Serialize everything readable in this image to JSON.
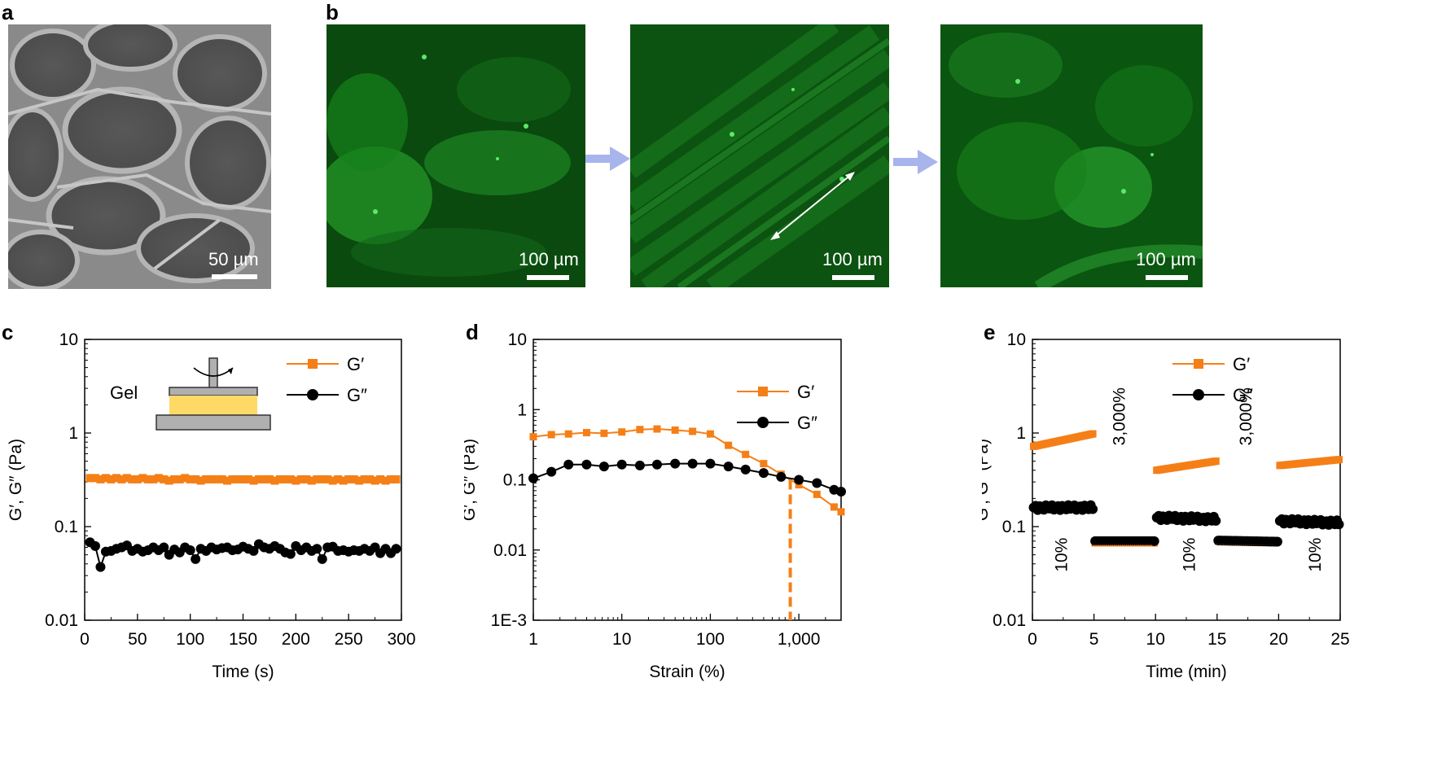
{
  "panels": {
    "a": {
      "letter": "a",
      "scale_label": "50 µm"
    },
    "b": {
      "letter": "b",
      "images": [
        {
          "scale_label": "100 µm"
        },
        {
          "scale_label": "100 µm"
        },
        {
          "scale_label": "100 µm"
        }
      ]
    },
    "c": {
      "letter": "c",
      "inset_label": "Gel"
    },
    "d": {
      "letter": "d"
    },
    "e": {
      "letter": "e"
    }
  },
  "colors": {
    "g_prime": "#f57f17",
    "g_double": "#000000",
    "arrow": "#a8b4ec",
    "gel": "#ffd966"
  },
  "chart_data": [
    {
      "id": "c",
      "type": "line",
      "xlabel": "Time (s)",
      "ylabel": "G′, G″ (Pa)",
      "xscale": "linear",
      "xlim": [
        0,
        300
      ],
      "xticks": [
        0,
        50,
        100,
        150,
        200,
        250,
        300
      ],
      "xticklabels": [
        "0",
        "50",
        "100",
        "150",
        "200",
        "250",
        "300"
      ],
      "yscale": "log",
      "ylim": [
        0.01,
        10
      ],
      "yticks": [
        0.01,
        0.1,
        1,
        10
      ],
      "yticklabels": [
        "0.01",
        "0.1",
        "1",
        "10"
      ],
      "legend": [
        "G′",
        "G″"
      ],
      "legend_position": "top-right",
      "series": [
        {
          "name": "G′",
          "marker": "square",
          "x": [
            5,
            10,
            15,
            20,
            25,
            30,
            35,
            40,
            45,
            50,
            55,
            60,
            65,
            70,
            75,
            80,
            85,
            90,
            95,
            100,
            105,
            110,
            115,
            120,
            125,
            130,
            135,
            140,
            145,
            150,
            155,
            160,
            165,
            170,
            175,
            180,
            185,
            190,
            195,
            200,
            205,
            210,
            215,
            220,
            225,
            230,
            235,
            240,
            245,
            250,
            255,
            260,
            265,
            270,
            275,
            280,
            285,
            290,
            295
          ],
          "y": [
            0.33,
            0.33,
            0.32,
            0.33,
            0.32,
            0.33,
            0.32,
            0.33,
            0.32,
            0.32,
            0.33,
            0.32,
            0.32,
            0.33,
            0.32,
            0.31,
            0.32,
            0.32,
            0.33,
            0.32,
            0.32,
            0.31,
            0.32,
            0.32,
            0.32,
            0.32,
            0.31,
            0.32,
            0.32,
            0.32,
            0.32,
            0.31,
            0.32,
            0.32,
            0.32,
            0.31,
            0.32,
            0.32,
            0.32,
            0.31,
            0.32,
            0.32,
            0.31,
            0.32,
            0.32,
            0.32,
            0.31,
            0.32,
            0.31,
            0.32,
            0.32,
            0.31,
            0.32,
            0.32,
            0.31,
            0.32,
            0.31,
            0.32,
            0.32
          ]
        },
        {
          "name": "G″",
          "marker": "circle",
          "x": [
            5,
            10,
            15,
            20,
            25,
            30,
            35,
            40,
            45,
            50,
            55,
            60,
            65,
            70,
            75,
            80,
            85,
            90,
            95,
            100,
            105,
            110,
            115,
            120,
            125,
            130,
            135,
            140,
            145,
            150,
            155,
            160,
            165,
            170,
            175,
            180,
            185,
            190,
            195,
            200,
            205,
            210,
            215,
            220,
            225,
            230,
            235,
            240,
            245,
            250,
            255,
            260,
            265,
            270,
            275,
            280,
            285,
            290,
            295
          ],
          "y": [
            0.068,
            0.062,
            0.037,
            0.054,
            0.055,
            0.058,
            0.06,
            0.063,
            0.055,
            0.058,
            0.054,
            0.056,
            0.06,
            0.056,
            0.06,
            0.05,
            0.057,
            0.053,
            0.06,
            0.056,
            0.045,
            0.058,
            0.055,
            0.06,
            0.057,
            0.059,
            0.06,
            0.056,
            0.057,
            0.061,
            0.058,
            0.055,
            0.065,
            0.06,
            0.058,
            0.062,
            0.058,
            0.053,
            0.051,
            0.062,
            0.056,
            0.06,
            0.055,
            0.058,
            0.045,
            0.06,
            0.061,
            0.055,
            0.056,
            0.054,
            0.056,
            0.055,
            0.058,
            0.055,
            0.06,
            0.052,
            0.058,
            0.052,
            0.058
          ]
        }
      ]
    },
    {
      "id": "d",
      "type": "line",
      "xlabel": "Strain (%)",
      "ylabel": "G′, G″ (Pa)",
      "xscale": "log",
      "xlim": [
        1,
        3000
      ],
      "xticks": [
        1,
        10,
        100,
        1000
      ],
      "xticklabels": [
        "1",
        "10",
        "100",
        "1,000"
      ],
      "yscale": "log",
      "ylim": [
        0.001,
        10
      ],
      "yticks": [
        0.001,
        0.01,
        0.1,
        1,
        10
      ],
      "yticklabels": [
        "1E-3",
        "0.01",
        "0.1",
        "1",
        "10"
      ],
      "legend": [
        "G′",
        "G″"
      ],
      "legend_position": "top-right",
      "crossover_strain": 800,
      "series": [
        {
          "name": "G′",
          "marker": "square",
          "x": [
            1,
            1.6,
            2.5,
            4,
            6.3,
            10,
            16,
            25,
            40,
            63,
            100,
            160,
            250,
            400,
            630,
            1000,
            1600,
            2500,
            3000
          ],
          "y": [
            0.41,
            0.44,
            0.45,
            0.47,
            0.46,
            0.48,
            0.52,
            0.53,
            0.51,
            0.49,
            0.45,
            0.31,
            0.23,
            0.17,
            0.12,
            0.085,
            0.062,
            0.041,
            0.035
          ]
        },
        {
          "name": "G″",
          "marker": "circle",
          "x": [
            1,
            1.6,
            2.5,
            4,
            6.3,
            10,
            16,
            25,
            40,
            63,
            100,
            160,
            250,
            400,
            630,
            1000,
            1600,
            2500,
            3000
          ],
          "y": [
            0.105,
            0.13,
            0.165,
            0.165,
            0.155,
            0.165,
            0.16,
            0.165,
            0.17,
            0.17,
            0.17,
            0.155,
            0.14,
            0.125,
            0.11,
            0.1,
            0.09,
            0.072,
            0.068
          ]
        }
      ]
    },
    {
      "id": "e",
      "type": "scatter",
      "xlabel": "Time (min)",
      "ylabel": "G′, G″ (Pa)",
      "xscale": "linear",
      "xlim": [
        0,
        25
      ],
      "xticks": [
        0,
        5,
        10,
        15,
        20,
        25
      ],
      "xticklabels": [
        "0",
        "5",
        "10",
        "15",
        "20",
        "25"
      ],
      "yscale": "log",
      "ylim": [
        0.01,
        10
      ],
      "yticks": [
        0.01,
        0.1,
        1,
        10
      ],
      "yticklabels": [
        "0.01",
        "0.1",
        "1",
        "10"
      ],
      "legend": [
        "G′",
        "G″"
      ],
      "legend_position": "top-right",
      "segments": [
        {
          "strain": "10%",
          "start": 0,
          "end": 5,
          "g_prime": [
            0.72,
            0.98
          ],
          "g_double": [
            0.16,
            0.16
          ]
        },
        {
          "strain": "3,000%",
          "start": 5,
          "end": 10,
          "g_prime": [
            0.067,
            0.067
          ],
          "g_double": [
            0.07,
            0.07
          ]
        },
        {
          "strain": "10%",
          "start": 10,
          "end": 15,
          "g_prime": [
            0.4,
            0.5
          ],
          "g_double": [
            0.125,
            0.12
          ]
        },
        {
          "strain": "3,000%",
          "start": 15,
          "end": 20,
          "g_prime": [
            0.07,
            0.069
          ],
          "g_double": [
            0.071,
            0.069
          ]
        },
        {
          "strain": "10%",
          "start": 20,
          "end": 25,
          "g_prime": [
            0.45,
            0.52
          ],
          "g_double": [
            0.115,
            0.11
          ]
        }
      ],
      "annotations": [
        {
          "text": "10%",
          "at_x": 2.8,
          "at_y": 0.05
        },
        {
          "text": "3,000%",
          "at_x": 7.5,
          "at_y": 1.5
        },
        {
          "text": "10%",
          "at_x": 13.2,
          "at_y": 0.05
        },
        {
          "text": "3,000%",
          "at_x": 17.8,
          "at_y": 1.5
        },
        {
          "text": "10%",
          "at_x": 23.4,
          "at_y": 0.05
        }
      ]
    }
  ]
}
